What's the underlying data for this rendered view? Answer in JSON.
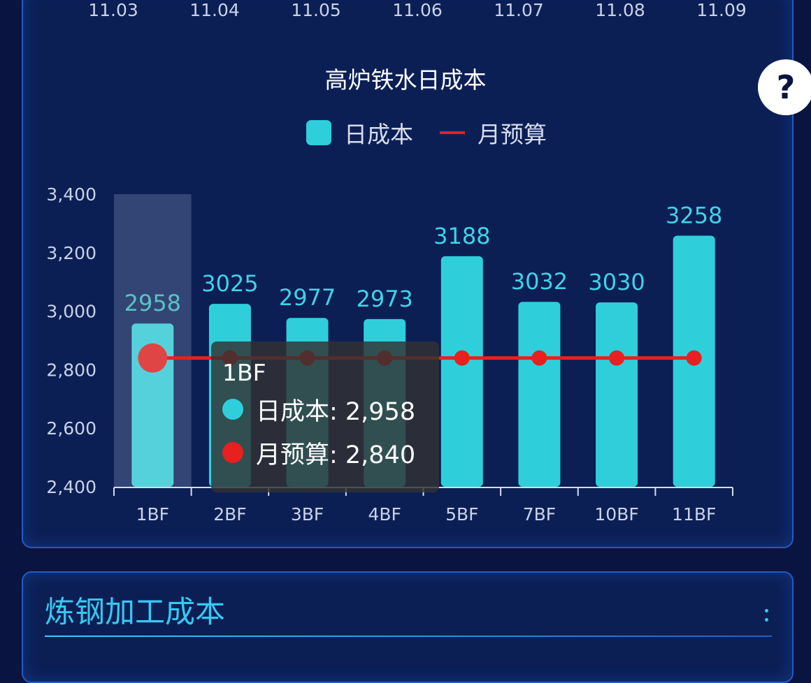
{
  "dates": [
    "11.03",
    "11.04",
    "11.05",
    "11.06",
    "11.07",
    "11.08",
    "11.09"
  ],
  "help_label": "?",
  "chart_data": {
    "type": "bar",
    "title": "高炉铁水日成本",
    "categories": [
      "1BF",
      "2BF",
      "3BF",
      "4BF",
      "5BF",
      "7BF",
      "10BF",
      "11BF"
    ],
    "series": [
      {
        "name": "日成本",
        "type": "bar",
        "values": [
          2958,
          3025,
          2977,
          2973,
          3188,
          3032,
          3030,
          3258
        ],
        "color": "#2ecfdb"
      },
      {
        "name": "月预算",
        "type": "line",
        "values": [
          2840,
          2840,
          2840,
          2840,
          2840,
          2840,
          2840,
          2840
        ],
        "color": "#e82020"
      }
    ],
    "ylim": [
      2400,
      3400
    ],
    "yticks": [
      "2,400",
      "2,600",
      "2,800",
      "3,000",
      "3,200",
      "3,400"
    ],
    "legend": "top",
    "highlight_index": 0
  },
  "tooltip": {
    "title": "1BF",
    "rows": [
      {
        "label": "日成本: 2,958",
        "color": "#2ecfdb"
      },
      {
        "label": "月预算: 2,840",
        "color": "#e82020"
      }
    ]
  },
  "steel_panel": {
    "title": "炼钢加工成本"
  }
}
